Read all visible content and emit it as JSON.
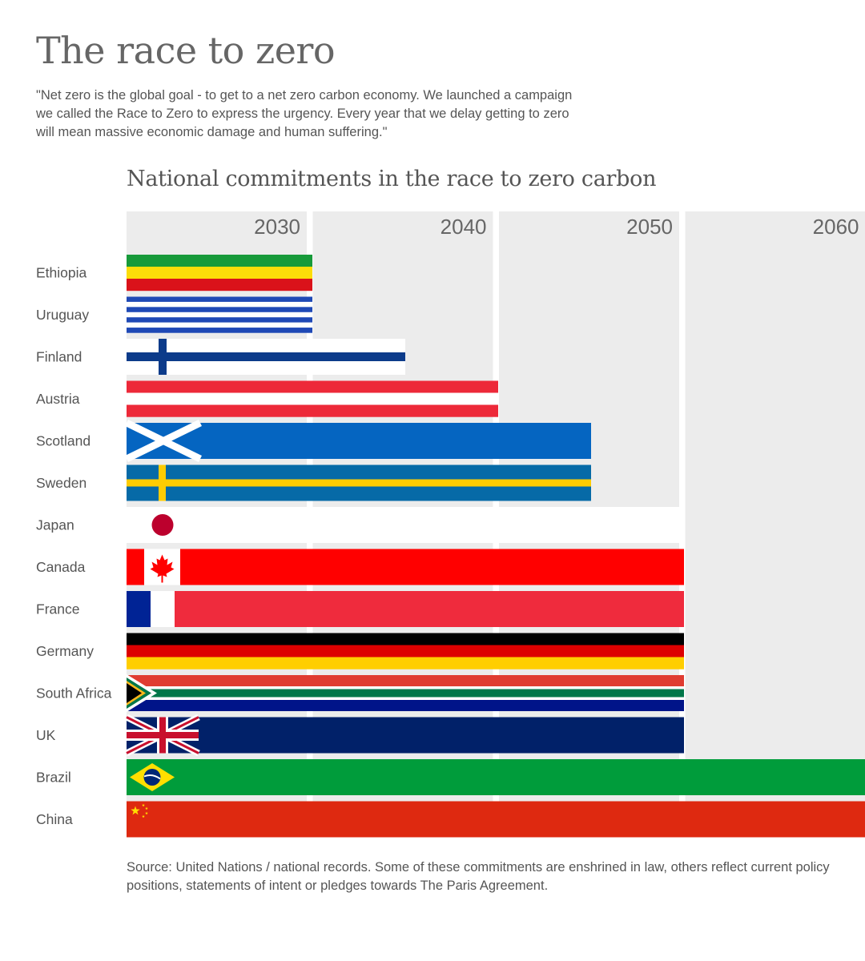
{
  "header": {
    "title": "The race to zero",
    "quote": "\"Net zero is the global goal - to get to a net zero carbon economy. We launched a campaign we called the Race to Zero to express the urgency. Every year that we delay getting to zero will mean massive economic damage and human suffering.\""
  },
  "chart_data": {
    "type": "bar",
    "orientation": "horizontal",
    "title": "National commitments in the race to zero carbon",
    "xlabel": "",
    "ylabel": "",
    "xlim": [
      2020,
      2060
    ],
    "x_ticks": [
      "2030",
      "2040",
      "2050",
      "2060"
    ],
    "categories": [
      "Ethiopia",
      "Uruguay",
      "Finland",
      "Austria",
      "Scotland",
      "Sweden",
      "Japan",
      "Canada",
      "France",
      "Germany",
      "South Africa",
      "UK",
      "Brazil",
      "China"
    ],
    "values": [
      2030,
      2030,
      2035,
      2040,
      2045,
      2045,
      2050,
      2050,
      2050,
      2050,
      2050,
      2050,
      2060,
      2060
    ],
    "bar_style": "national flag",
    "grid": "vertical decade bands"
  },
  "colors": {
    "band": "#ececec",
    "label": "#555555"
  },
  "footer": {
    "source": "Source: United Nations / national records. Some of these commitments are enshrined in law, others reflect current policy positions, statements of intent or pledges towards The Paris Agreement."
  }
}
